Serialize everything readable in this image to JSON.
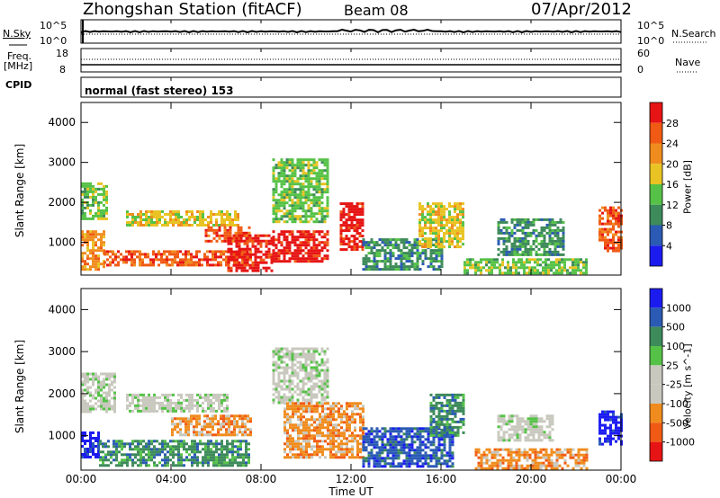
{
  "header": {
    "station_title": "Zhongshan Station (fitACF)",
    "beam_label": "Beam 08",
    "date": "07/Apr/2012"
  },
  "top_panels": {
    "nsky_label": "N.Sky",
    "nsky_ticks": [
      "10^5",
      "10^0"
    ],
    "nsearch_label": "N.Search",
    "nsearch_ticks": [
      "10^5",
      "10^0"
    ],
    "freq_label_1": "Freq.",
    "freq_label_2": "[MHz]",
    "freq_ticks": [
      "18",
      "8"
    ],
    "nave_label": "Nave",
    "nave_ticks": [
      "60",
      "0"
    ],
    "cpid_label": "CPID",
    "cpid_value": "normal (fast stereo) 153"
  },
  "colors": {
    "power_scale": [
      "#1b1bf0",
      "#2a5ab4",
      "#3d8a5a",
      "#55c247",
      "#e8c323",
      "#f08c1e",
      "#f05a14",
      "#e61414"
    ],
    "velocity_scale": [
      "#e61414",
      "#f05a14",
      "#f08c1e",
      "#c8c8be",
      "#c8c8be",
      "#55c247",
      "#3d8a5a",
      "#2a5ab4",
      "#1b1bf0"
    ]
  },
  "chart_data": [
    {
      "type": "heatmap",
      "name": "power",
      "xlabel": "",
      "ylabel": "Slant Range [km]",
      "x_range_hours": [
        0,
        24
      ],
      "ylim": [
        180,
        4500
      ],
      "yticks": [
        "4000",
        "3000",
        "2000",
        "1000"
      ],
      "colorbar_label": "Power [dB]",
      "colorbar_ticks": [
        "28",
        "24",
        "20",
        "16",
        "12",
        "8",
        "4"
      ],
      "regions": [
        {
          "t0": 0.0,
          "t1": 1.0,
          "r0": 300,
          "r1": 1300,
          "v": 5
        },
        {
          "t0": 0.0,
          "t1": 1.2,
          "r0": 1600,
          "r1": 2500,
          "v": 3
        },
        {
          "t0": 1.0,
          "t1": 7.5,
          "r0": 400,
          "r1": 800,
          "v": 6
        },
        {
          "t0": 2.0,
          "t1": 7.0,
          "r0": 1400,
          "r1": 1800,
          "v": 4
        },
        {
          "t0": 5.5,
          "t1": 7.5,
          "r0": 1000,
          "r1": 1400,
          "v": 6
        },
        {
          "t0": 6.5,
          "t1": 8.5,
          "r0": 300,
          "r1": 1200,
          "v": 7
        },
        {
          "t0": 8.5,
          "t1": 11.0,
          "r0": 500,
          "r1": 1300,
          "v": 7
        },
        {
          "t0": 8.5,
          "t1": 11.0,
          "r0": 1500,
          "r1": 3100,
          "v": 3
        },
        {
          "t0": 11.5,
          "t1": 12.5,
          "r0": 800,
          "r1": 2000,
          "v": 7
        },
        {
          "t0": 12.5,
          "t1": 16.0,
          "r0": 300,
          "r1": 1100,
          "v": 2
        },
        {
          "t0": 15.0,
          "t1": 17.0,
          "r0": 900,
          "r1": 2000,
          "v": 4
        },
        {
          "t0": 17.0,
          "t1": 22.5,
          "r0": 250,
          "r1": 600,
          "v": 3
        },
        {
          "t0": 18.5,
          "t1": 21.5,
          "r0": 700,
          "r1": 1600,
          "v": 2
        },
        {
          "t0": 23.0,
          "t1": 24.0,
          "r0": 800,
          "r1": 1900,
          "v": 6
        }
      ]
    },
    {
      "type": "heatmap",
      "name": "velocity",
      "xlabel": "Time UT",
      "ylabel": "Slant Range [km]",
      "x_range_hours": [
        0,
        24
      ],
      "xticks": [
        "00:00",
        "04:00",
        "08:00",
        "12:00",
        "16:00",
        "20:00",
        "00:00"
      ],
      "ylim": [
        180,
        4500
      ],
      "yticks": [
        "4000",
        "3000",
        "2000",
        "1000"
      ],
      "colorbar_label": "Velocity [m s^-1]",
      "colorbar_ticks": [
        "1000",
        "500",
        "100",
        "25",
        "-25",
        "-100",
        "-500",
        "-1000"
      ],
      "regions": [
        {
          "t0": 0.0,
          "t1": 0.8,
          "r0": 500,
          "r1": 1100,
          "v": 8
        },
        {
          "t0": 0.0,
          "t1": 1.5,
          "r0": 1600,
          "r1": 2500,
          "v": 4
        },
        {
          "t0": 0.8,
          "t1": 7.5,
          "r0": 300,
          "r1": 900,
          "v": 6
        },
        {
          "t0": 2.0,
          "t1": 6.5,
          "r0": 1600,
          "r1": 2000,
          "v": 4
        },
        {
          "t0": 4.0,
          "t1": 7.5,
          "r0": 1000,
          "r1": 1500,
          "v": 2
        },
        {
          "t0": 8.5,
          "t1": 11.0,
          "r0": 1800,
          "r1": 3100,
          "v": 4
        },
        {
          "t0": 9.0,
          "t1": 12.5,
          "r0": 500,
          "r1": 1800,
          "v": 2
        },
        {
          "t0": 12.5,
          "t1": 16.5,
          "r0": 300,
          "r1": 1200,
          "v": 7
        },
        {
          "t0": 15.5,
          "t1": 17.0,
          "r0": 1000,
          "r1": 2000,
          "v": 6
        },
        {
          "t0": 17.5,
          "t1": 22.5,
          "r0": 200,
          "r1": 700,
          "v": 2
        },
        {
          "t0": 18.5,
          "t1": 21.0,
          "r0": 900,
          "r1": 1500,
          "v": 4
        },
        {
          "t0": 23.0,
          "t1": 24.0,
          "r0": 800,
          "r1": 1600,
          "v": 8
        }
      ]
    }
  ]
}
